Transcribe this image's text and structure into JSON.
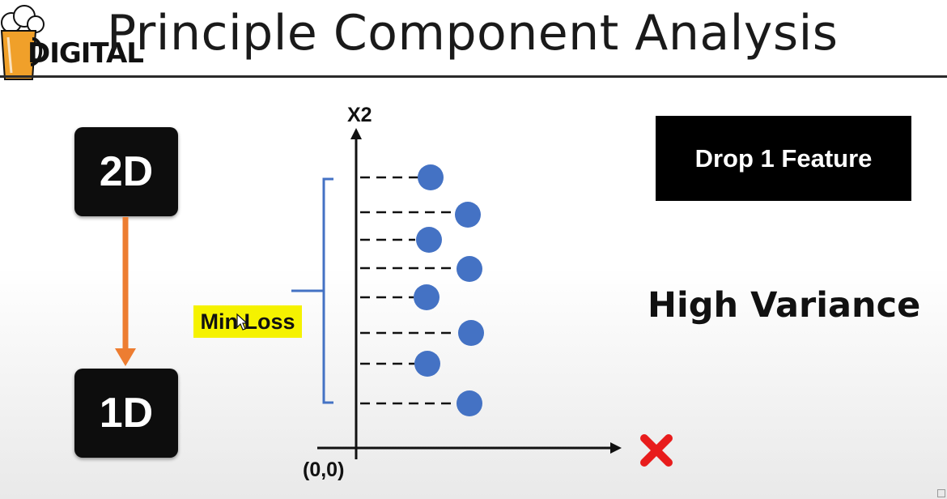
{
  "title": "Principle Component Analysis",
  "logo": {
    "text": "DIGITAL"
  },
  "boxes": {
    "top": "2D",
    "bottom": "1D"
  },
  "drop_label": "Drop 1 Feature",
  "variance_label": "High Variance",
  "min_loss_label": "Min Loss",
  "axis": {
    "y_label": "X2",
    "origin_label": "(0,0)"
  },
  "colors": {
    "point": "#4472c4",
    "bracket": "#4472c4",
    "arrow": "#ed7d31",
    "cross": "#e81c1c",
    "highlight": "#f5f200"
  },
  "icons": [
    "beer-mug-icon",
    "cursor-icon",
    "cross-icon"
  ]
}
